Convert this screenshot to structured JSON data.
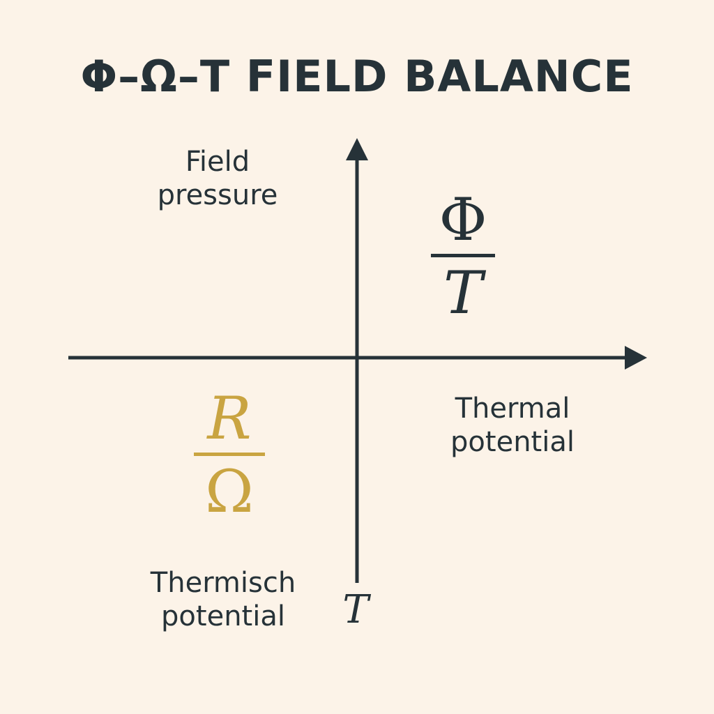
{
  "title": "Φ–Ω–T FIELD BALANCE",
  "labels": {
    "top_left": [
      "Field",
      "pressure"
    ],
    "right": [
      "Thermal",
      "potential"
    ],
    "bottom_left": [
      "Thermisch",
      "potential"
    ]
  },
  "fractions": {
    "top_right": {
      "numerator": "Φ",
      "denominator": "T"
    },
    "bottom_left": {
      "numerator": "R",
      "denominator": "Ω"
    }
  },
  "axis_variable": "T",
  "colors": {
    "background": "#fcf3e8",
    "ink": "#263238",
    "accent": "#c9a441"
  }
}
